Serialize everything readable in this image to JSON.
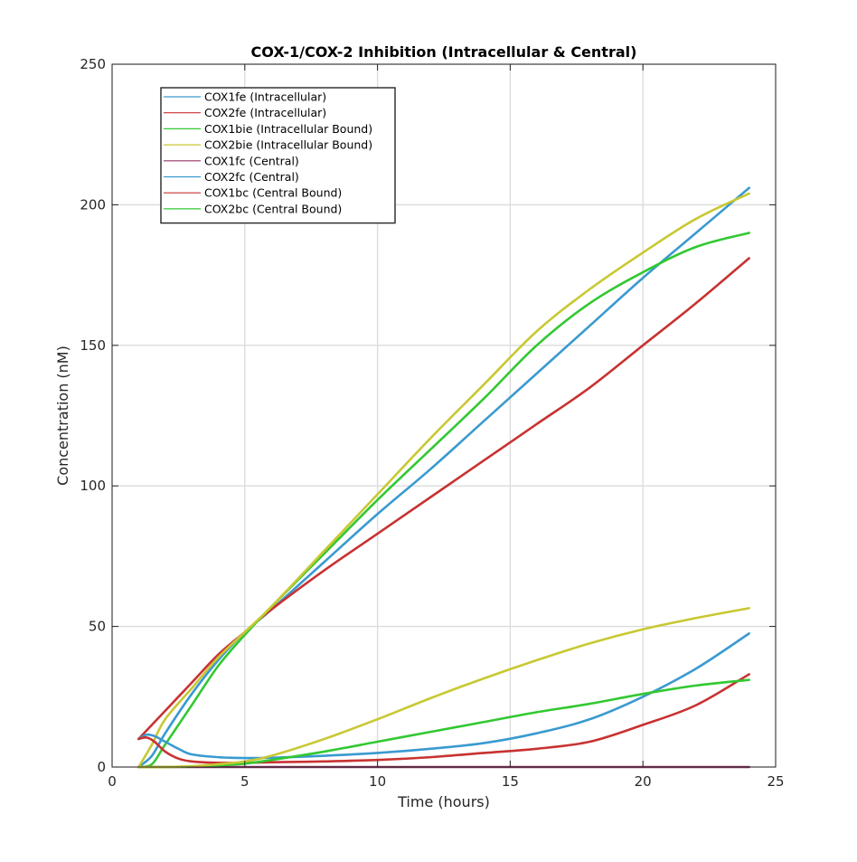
{
  "chart_data": {
    "type": "line",
    "title": "COX-1/COX-2 Inhibition (Intracellular & Central)",
    "xlabel": "Time (hours)",
    "ylabel": "Concentration (nM)",
    "xlim": [
      0,
      25
    ],
    "ylim": [
      0,
      250
    ],
    "xticks": [
      0,
      5,
      10,
      15,
      20,
      25
    ],
    "yticks": [
      0,
      50,
      100,
      150,
      200,
      250
    ],
    "grid": true,
    "legend_position": "top-left",
    "series": [
      {
        "name": "COX1fe (Intracellular)",
        "color": "#3a9ad0",
        "x": [
          1,
          1.5,
          2,
          3,
          4,
          5,
          6,
          8,
          10,
          12,
          14,
          16,
          18,
          20,
          22,
          24
        ],
        "y": [
          0,
          4,
          12,
          26,
          38,
          48,
          56,
          73,
          90,
          106,
          123,
          140,
          157,
          174,
          190,
          206
        ]
      },
      {
        "name": "COX2fe (Intracellular)",
        "color": "#c83232",
        "x": [
          1,
          1.5,
          2,
          3,
          4,
          5,
          6,
          8,
          10,
          12,
          14,
          16,
          18,
          20,
          22,
          24
        ],
        "y": [
          10,
          15,
          20,
          30,
          40,
          48,
          56,
          70,
          83,
          96,
          109,
          122,
          135,
          150,
          165,
          181
        ]
      },
      {
        "name": "COX1bie (Intracellular Bound)",
        "color": "#32c832",
        "x": [
          1,
          1.5,
          2,
          3,
          4,
          5,
          6,
          8,
          10,
          12,
          14,
          16,
          18,
          20,
          22,
          24
        ],
        "y": [
          0,
          1,
          8,
          22,
          36,
          47,
          57,
          76,
          95,
          113,
          131,
          150,
          165,
          176,
          185,
          190
        ]
      },
      {
        "name": "COX2bie (Intracellular Bound)",
        "color": "#c8c832",
        "x": [
          1,
          1.5,
          2,
          3,
          4,
          5,
          6,
          8,
          10,
          12,
          14,
          16,
          18,
          20,
          22,
          24
        ],
        "y": [
          0,
          8,
          17,
          28,
          39,
          48,
          57,
          77,
          97,
          117,
          136,
          155,
          170,
          183,
          195,
          204
        ]
      },
      {
        "name": "COX1fc (Central)",
        "color": "#963264",
        "x": [
          1,
          2,
          5,
          10,
          15,
          20,
          24
        ],
        "y": [
          0,
          0,
          0,
          0,
          0,
          0,
          0
        ]
      },
      {
        "name": "COX2fc (Central)",
        "color": "#3a9ad0",
        "x": [
          1,
          1.3,
          1.6,
          2,
          2.5,
          3,
          4,
          5,
          6,
          8,
          10,
          12,
          14,
          16,
          18,
          20,
          22,
          24
        ],
        "y": [
          10,
          11.5,
          11,
          9,
          6.5,
          4.5,
          3.5,
          3.2,
          3.3,
          4,
          5,
          6.5,
          8.5,
          12,
          17,
          25,
          35,
          47.5
        ]
      },
      {
        "name": "COX1bc (Central Bound)",
        "color": "#c83232",
        "x": [
          1,
          1.3,
          1.6,
          2,
          2.5,
          3,
          4,
          5,
          6,
          8,
          10,
          12,
          14,
          16,
          18,
          20,
          22,
          24
        ],
        "y": [
          10,
          10.5,
          9,
          5.5,
          3,
          2,
          1.5,
          1.5,
          1.7,
          2,
          2.5,
          3.5,
          5,
          6.5,
          9,
          15,
          22,
          33
        ]
      },
      {
        "name": "COX2bc (Central Bound)",
        "color": "#32c832",
        "x": [
          1,
          2,
          3,
          4,
          5,
          6,
          8,
          10,
          12,
          14,
          16,
          18,
          20,
          22,
          24
        ],
        "y": [
          0,
          0,
          0.2,
          0.6,
          1.2,
          2.5,
          5.5,
          9,
          12.5,
          16,
          19.5,
          22.5,
          26,
          29,
          31
        ]
      },
      {
        "name": "",
        "color": "#c8c832",
        "x": [
          1,
          2,
          3,
          4,
          5,
          6,
          8,
          10,
          12,
          14,
          16,
          18,
          20,
          22,
          24
        ],
        "y": [
          0,
          0,
          0.3,
          1,
          2,
          4,
          10,
          17,
          24.5,
          31.5,
          38,
          44,
          49,
          53,
          56.5
        ]
      }
    ]
  }
}
